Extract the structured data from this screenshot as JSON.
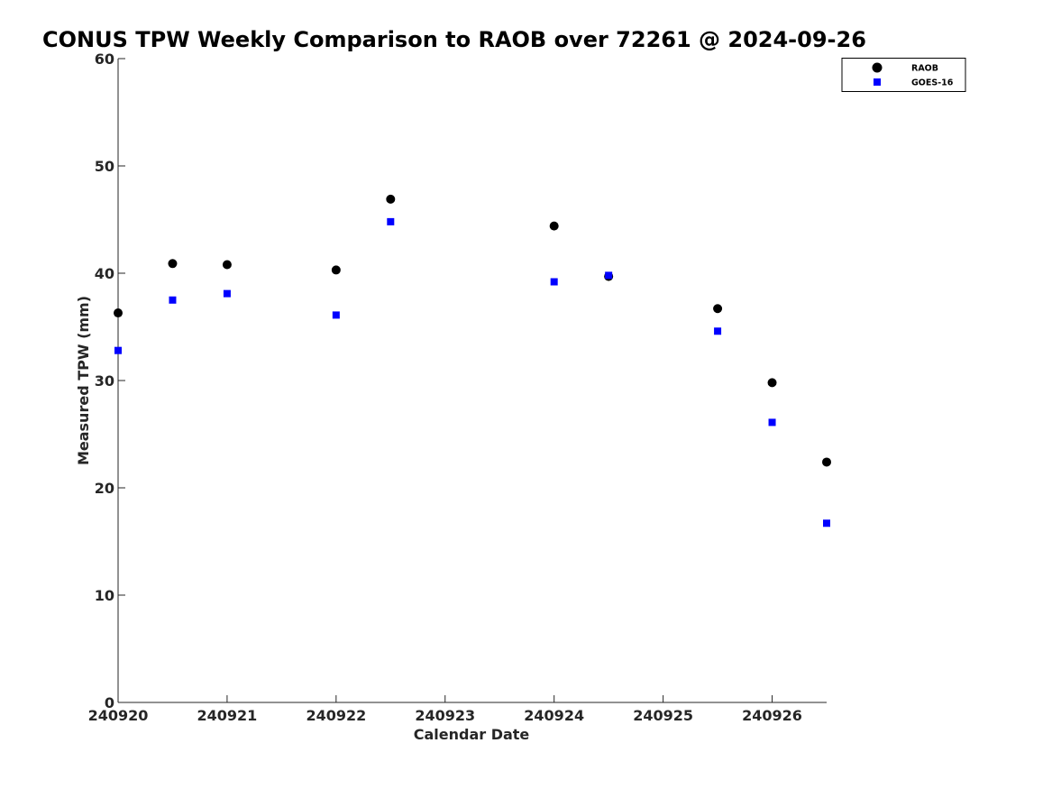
{
  "chart_data": {
    "type": "scatter",
    "title": "CONUS TPW Weekly Comparison to RAOB over 72261 @ 2024-09-26",
    "xlabel": "Calendar Date",
    "ylabel": "Measured TPW (mm)",
    "xlim": [
      "240920",
      "240926.5"
    ],
    "ylim": [
      0,
      60
    ],
    "x_ticks": [
      "240920",
      "240921",
      "240922",
      "240923",
      "240924",
      "240925",
      "240926"
    ],
    "y_ticks": [
      0,
      10,
      20,
      30,
      40,
      50,
      60
    ],
    "grid": false,
    "legend_position": "top-right",
    "series": [
      {
        "name": "RAOB",
        "color": "#000000",
        "marker": "circle",
        "points": [
          {
            "x": "240920 00Z",
            "y": 36.3
          },
          {
            "x": "240920 12Z",
            "y": 40.9
          },
          {
            "x": "240921 00Z",
            "y": 40.8
          },
          {
            "x": "240922 00Z",
            "y": 40.3
          },
          {
            "x": "240922 12Z",
            "y": 46.9
          },
          {
            "x": "240924 00Z",
            "y": 44.4
          },
          {
            "x": "240924 12Z",
            "y": 39.7
          },
          {
            "x": "240925 12Z",
            "y": 36.7
          },
          {
            "x": "240926 00Z",
            "y": 29.8
          },
          {
            "x": "240926 12Z",
            "y": 22.4
          }
        ]
      },
      {
        "name": "GOES-16",
        "color": "#0000ff",
        "marker": "square",
        "points": [
          {
            "x": "240920 00Z",
            "y": 32.8
          },
          {
            "x": "240920 12Z",
            "y": 37.5
          },
          {
            "x": "240921 00Z",
            "y": 38.1
          },
          {
            "x": "240922 00Z",
            "y": 36.1
          },
          {
            "x": "240922 12Z",
            "y": 44.8
          },
          {
            "x": "240924 00Z",
            "y": 39.2
          },
          {
            "x": "240924 12Z",
            "y": 39.8
          },
          {
            "x": "240925 12Z",
            "y": 34.6
          },
          {
            "x": "240926 00Z",
            "y": 26.1
          },
          {
            "x": "240926 12Z",
            "y": 16.7
          }
        ]
      }
    ]
  }
}
